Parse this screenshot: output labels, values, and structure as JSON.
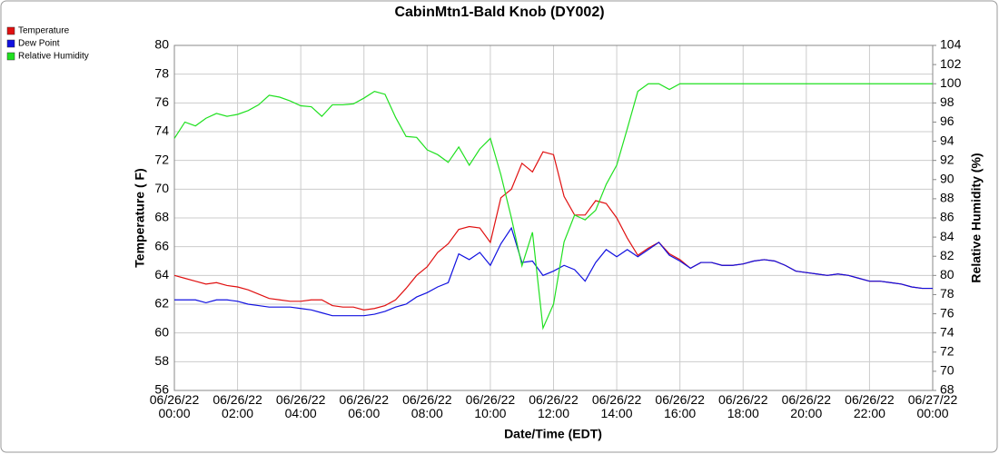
{
  "chart_data": {
    "type": "line",
    "title": "CabinMtn1-Bald Knob (DY002)",
    "x_label": "Date/Time (EDT)",
    "y_label": "Temperature ( F)",
    "y2_label": "Relative Humidity (%)",
    "legend": "upper-left",
    "grid": true,
    "xlim": [
      "06/26/22 00:00",
      "06/27/22 00:00"
    ],
    "xticks": [
      "06/26/22\n00:00",
      "06/26/22\n02:00",
      "06/26/22\n04:00",
      "06/26/22\n06:00",
      "06/26/22\n08:00",
      "06/26/22\n10:00",
      "06/26/22\n12:00",
      "06/26/22\n14:00",
      "06/26/22\n16:00",
      "06/26/22\n18:00",
      "06/26/22\n20:00",
      "06/26/22\n22:00",
      "06/27/22\n00:00"
    ],
    "ylim": [
      56,
      80
    ],
    "yticks": [
      56,
      58,
      60,
      62,
      64,
      66,
      68,
      70,
      72,
      74,
      76,
      78,
      80
    ],
    "y2lim": [
      68,
      104
    ],
    "y2ticks": [
      68,
      70,
      72,
      74,
      76,
      78,
      80,
      82,
      84,
      86,
      88,
      90,
      92,
      94,
      96,
      98,
      100,
      102,
      104
    ],
    "x": [
      "06/26/22 00:00",
      "06/26/22 00:20",
      "06/26/22 00:40",
      "06/26/22 01:00",
      "06/26/22 01:20",
      "06/26/22 01:40",
      "06/26/22 02:00",
      "06/26/22 02:20",
      "06/26/22 02:40",
      "06/26/22 03:00",
      "06/26/22 03:20",
      "06/26/22 03:40",
      "06/26/22 04:00",
      "06/26/22 04:20",
      "06/26/22 04:40",
      "06/26/22 05:00",
      "06/26/22 05:20",
      "06/26/22 05:40",
      "06/26/22 06:00",
      "06/26/22 06:20",
      "06/26/22 06:40",
      "06/26/22 07:00",
      "06/26/22 07:20",
      "06/26/22 07:40",
      "06/26/22 08:00",
      "06/26/22 08:20",
      "06/26/22 08:40",
      "06/26/22 09:00",
      "06/26/22 09:20",
      "06/26/22 09:40",
      "06/26/22 10:00",
      "06/26/22 10:20",
      "06/26/22 10:40",
      "06/26/22 11:00",
      "06/26/22 11:20",
      "06/26/22 11:40",
      "06/26/22 12:00",
      "06/26/22 12:20",
      "06/26/22 12:40",
      "06/26/22 13:00",
      "06/26/22 13:20",
      "06/26/22 13:40",
      "06/26/22 14:00",
      "06/26/22 14:20",
      "06/26/22 14:40",
      "06/26/22 15:00",
      "06/26/22 15:20",
      "06/26/22 15:40",
      "06/26/22 16:00",
      "06/26/22 16:20",
      "06/26/22 16:40",
      "06/26/22 17:00",
      "06/26/22 17:20",
      "06/26/22 17:40",
      "06/26/22 18:00",
      "06/26/22 18:20",
      "06/26/22 18:40",
      "06/26/22 19:00",
      "06/26/22 19:20",
      "06/26/22 19:40",
      "06/26/22 20:00",
      "06/26/22 20:20",
      "06/26/22 20:40",
      "06/26/22 21:00",
      "06/26/22 21:20",
      "06/26/22 21:40",
      "06/26/22 22:00",
      "06/26/22 22:20",
      "06/26/22 22:40",
      "06/26/22 23:00",
      "06/26/22 23:20",
      "06/26/22 23:40",
      "06/27/22 00:00"
    ],
    "series": [
      {
        "name": "Temperature",
        "color": "#e01010",
        "values": [
          64.0,
          63.8,
          63.6,
          63.4,
          63.5,
          63.3,
          63.2,
          63.0,
          62.7,
          62.4,
          62.3,
          62.2,
          62.2,
          62.3,
          62.3,
          61.9,
          61.8,
          61.8,
          61.6,
          61.7,
          61.9,
          62.3,
          63.1,
          64.0,
          64.6,
          65.6,
          66.2,
          67.2,
          67.4,
          67.3,
          66.3,
          69.4,
          70.0,
          71.8,
          71.2,
          72.6,
          72.4,
          69.5,
          68.2,
          68.2,
          69.2,
          69.0,
          68.0,
          66.6,
          65.4,
          65.9,
          66.3,
          65.5,
          65.1,
          64.5,
          64.9,
          64.9,
          64.7,
          64.7,
          64.8,
          65.0,
          65.1,
          65.0,
          64.7,
          64.3,
          64.2,
          64.1,
          64.0,
          64.1,
          64.0,
          63.8,
          63.6,
          63.6,
          63.5,
          63.4,
          63.2,
          63.1,
          63.1
        ]
      },
      {
        "name": "Dew Point",
        "color": "#1010e0",
        "values": [
          62.3,
          62.3,
          62.3,
          62.1,
          62.3,
          62.3,
          62.2,
          62.0,
          61.9,
          61.8,
          61.8,
          61.8,
          61.7,
          61.6,
          61.4,
          61.2,
          61.2,
          61.2,
          61.2,
          61.3,
          61.5,
          61.8,
          62.0,
          62.5,
          62.8,
          63.2,
          63.5,
          65.5,
          65.1,
          65.6,
          64.7,
          66.2,
          67.3,
          64.9,
          65.0,
          64.0,
          64.3,
          64.7,
          64.4,
          63.6,
          64.9,
          65.8,
          65.3,
          65.8,
          65.3,
          65.8,
          66.3,
          65.4,
          65.0,
          64.5,
          64.9,
          64.9,
          64.7,
          64.7,
          64.8,
          65.0,
          65.1,
          65.0,
          64.7,
          64.3,
          64.2,
          64.1,
          64.0,
          64.1,
          64.0,
          63.8,
          63.6,
          63.6,
          63.5,
          63.4,
          63.2,
          63.1,
          63.1
        ]
      },
      {
        "name": "Relative Humidity",
        "color": "#20e020",
        "axis": "y2",
        "values": [
          94.3,
          96.0,
          95.6,
          96.4,
          96.9,
          96.6,
          96.8,
          97.2,
          97.8,
          98.8,
          98.6,
          98.2,
          97.7,
          97.6,
          96.6,
          97.8,
          97.8,
          97.9,
          98.5,
          99.2,
          98.9,
          96.5,
          94.5,
          94.4,
          93.1,
          92.6,
          91.8,
          93.4,
          91.5,
          93.2,
          94.3,
          90.5,
          86.0,
          81.0,
          84.5,
          74.5,
          77.0,
          83.5,
          86.3,
          85.8,
          86.8,
          89.5,
          91.5,
          95.3,
          99.2,
          100,
          100,
          99.4,
          100,
          100,
          100,
          100,
          100,
          100,
          100,
          100,
          100,
          100,
          100,
          100,
          100,
          100,
          100,
          100,
          100,
          100,
          100,
          100,
          100,
          100,
          100,
          100,
          100
        ]
      }
    ]
  }
}
